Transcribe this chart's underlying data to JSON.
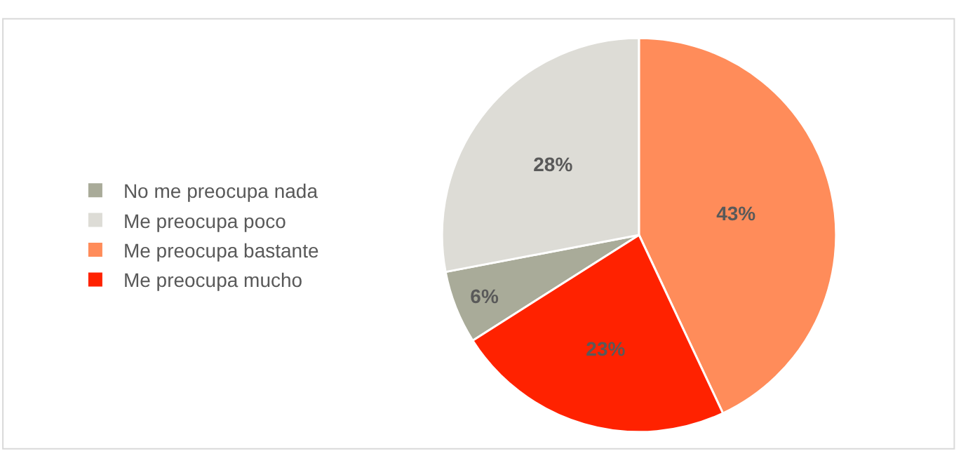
{
  "chart_data": {
    "type": "pie",
    "categories": [
      "No me preocupa nada",
      "Me preocupa poco",
      "Me preocupa bastante",
      "Me preocupa mucho"
    ],
    "values": [
      6,
      28,
      43,
      23
    ],
    "colors": [
      "#a9ab99",
      "#dddcd6",
      "#ff8c5a",
      "#ff2200"
    ],
    "value_labels": [
      "6%",
      "28%",
      "43%",
      "23%"
    ],
    "legend": "left"
  }
}
